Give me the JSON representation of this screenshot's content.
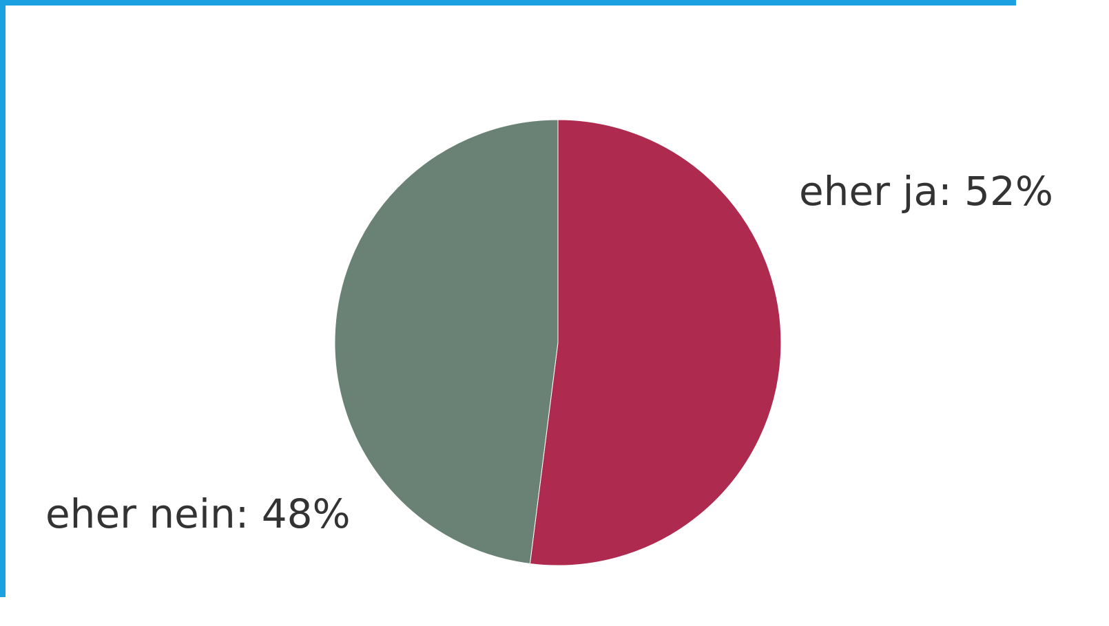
{
  "frame": {
    "border_color": "#1ba1e2"
  },
  "chart_data": {
    "type": "pie",
    "start_angle_deg": 0,
    "direction": "clockwise",
    "slices": [
      {
        "label": "eher ja",
        "value": 52,
        "color": "#ae2a4f",
        "text": "eher ja: 52%"
      },
      {
        "label": "eher nein",
        "value": 48,
        "color": "#6a8176",
        "text": "eher nein: 48%"
      }
    ]
  }
}
